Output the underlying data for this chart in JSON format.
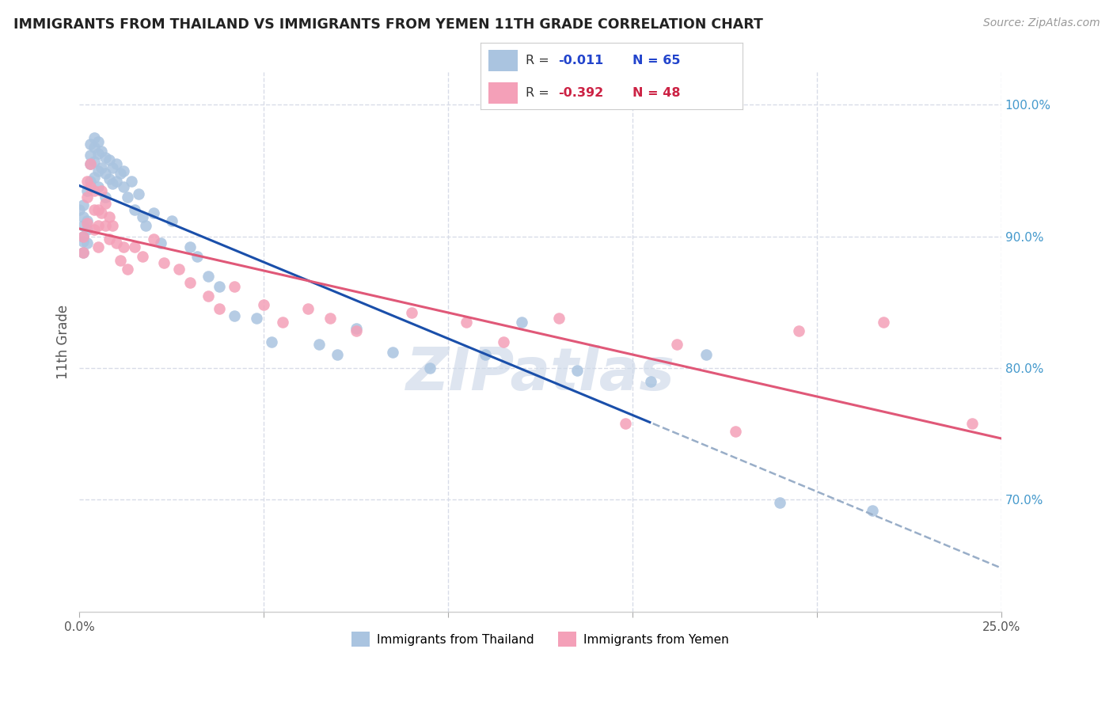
{
  "title": "IMMIGRANTS FROM THAILAND VS IMMIGRANTS FROM YEMEN 11TH GRADE CORRELATION CHART",
  "source": "Source: ZipAtlas.com",
  "ylabel": "11th Grade",
  "xmin": 0.0,
  "xmax": 0.25,
  "ymin": 0.615,
  "ymax": 1.025,
  "yticks": [
    0.7,
    0.8,
    0.9,
    1.0
  ],
  "ytick_labels": [
    "70.0%",
    "80.0%",
    "90.0%",
    "100.0%"
  ],
  "legend_r_thailand": "-0.011",
  "legend_n_thailand": "65",
  "legend_r_yemen": "-0.392",
  "legend_n_yemen": "48",
  "color_thailand": "#aac4e0",
  "color_yemen": "#f4a0b8",
  "line_color_thailand": "#1a4faa",
  "line_color_yemen": "#e05878",
  "dashed_line_color": "#99aec8",
  "background_color": "#ffffff",
  "grid_color": "#d8dce8",
  "watermark": "ZIPatlas",
  "thailand_x": [
    0.0,
    0.001,
    0.001,
    0.001,
    0.001,
    0.001,
    0.001,
    0.002,
    0.002,
    0.002,
    0.002,
    0.003,
    0.003,
    0.003,
    0.003,
    0.004,
    0.004,
    0.004,
    0.004,
    0.005,
    0.005,
    0.005,
    0.005,
    0.006,
    0.006,
    0.007,
    0.007,
    0.007,
    0.008,
    0.008,
    0.009,
    0.009,
    0.01,
    0.01,
    0.011,
    0.012,
    0.012,
    0.013,
    0.014,
    0.015,
    0.016,
    0.017,
    0.018,
    0.02,
    0.022,
    0.025,
    0.03,
    0.032,
    0.035,
    0.038,
    0.042,
    0.048,
    0.052,
    0.065,
    0.07,
    0.075,
    0.085,
    0.095,
    0.11,
    0.12,
    0.135,
    0.155,
    0.17,
    0.19,
    0.215
  ],
  "thailand_y": [
    0.92,
    0.924,
    0.915,
    0.908,
    0.9,
    0.896,
    0.888,
    0.935,
    0.912,
    0.905,
    0.895,
    0.97,
    0.962,
    0.955,
    0.942,
    0.975,
    0.968,
    0.957,
    0.945,
    0.972,
    0.963,
    0.95,
    0.938,
    0.965,
    0.952,
    0.96,
    0.948,
    0.93,
    0.958,
    0.944,
    0.952,
    0.94,
    0.955,
    0.942,
    0.948,
    0.95,
    0.938,
    0.93,
    0.942,
    0.92,
    0.932,
    0.915,
    0.908,
    0.918,
    0.895,
    0.912,
    0.892,
    0.885,
    0.87,
    0.862,
    0.84,
    0.838,
    0.82,
    0.818,
    0.81,
    0.83,
    0.812,
    0.8,
    0.81,
    0.835,
    0.798,
    0.79,
    0.81,
    0.698,
    0.692
  ],
  "yemen_x": [
    0.001,
    0.001,
    0.002,
    0.002,
    0.002,
    0.003,
    0.003,
    0.004,
    0.004,
    0.004,
    0.005,
    0.005,
    0.005,
    0.006,
    0.006,
    0.007,
    0.007,
    0.008,
    0.008,
    0.009,
    0.01,
    0.011,
    0.012,
    0.013,
    0.015,
    0.017,
    0.02,
    0.023,
    0.027,
    0.03,
    0.035,
    0.038,
    0.042,
    0.05,
    0.055,
    0.062,
    0.068,
    0.075,
    0.09,
    0.105,
    0.115,
    0.13,
    0.148,
    0.162,
    0.178,
    0.195,
    0.218,
    0.242
  ],
  "yemen_y": [
    0.9,
    0.888,
    0.942,
    0.93,
    0.91,
    0.955,
    0.938,
    0.935,
    0.92,
    0.905,
    0.92,
    0.908,
    0.892,
    0.935,
    0.918,
    0.925,
    0.908,
    0.915,
    0.898,
    0.908,
    0.895,
    0.882,
    0.892,
    0.875,
    0.892,
    0.885,
    0.898,
    0.88,
    0.875,
    0.865,
    0.855,
    0.845,
    0.862,
    0.848,
    0.835,
    0.845,
    0.838,
    0.828,
    0.842,
    0.835,
    0.82,
    0.838,
    0.758,
    0.818,
    0.752,
    0.828,
    0.835,
    0.758
  ]
}
